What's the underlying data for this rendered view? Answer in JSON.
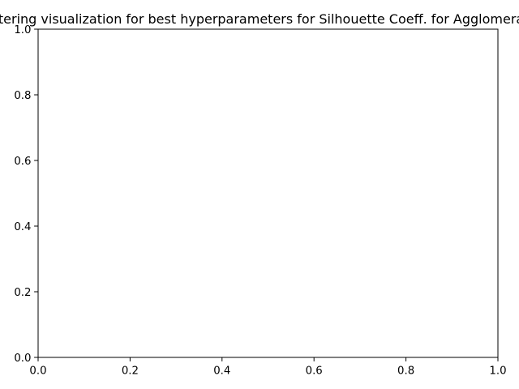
{
  "chart_data": {
    "type": "line",
    "title": "Clustering visualization for best hyperparameters for Silhouette Coeff. for Agglomerative",
    "xlabel": "",
    "ylabel": "",
    "xlim": [
      0,
      1
    ],
    "ylim": [
      0,
      1
    ],
    "x_ticks": [
      "0.0",
      "0.2",
      "0.4",
      "0.6",
      "0.8",
      "1.0"
    ],
    "y_ticks": [
      "0.0",
      "0.2",
      "0.4",
      "0.6",
      "0.8",
      "1.0"
    ],
    "series": [],
    "grid": false,
    "legend": "none"
  }
}
